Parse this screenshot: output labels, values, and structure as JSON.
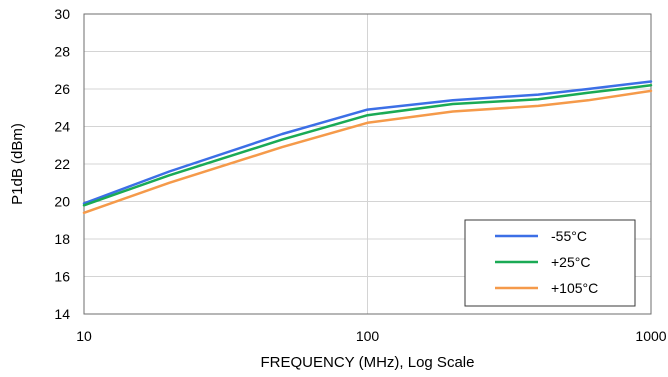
{
  "chart_data": {
    "type": "line",
    "title": "",
    "xlabel": "FREQUENCY (MHz), Log Scale",
    "ylabel": "P1dB (dBm)",
    "xscale": "log",
    "xlim": [
      10,
      1000
    ],
    "ylim": [
      14,
      30
    ],
    "xticks": [
      10,
      100,
      1000
    ],
    "xtick_labels": [
      "10",
      "100",
      "1000"
    ],
    "yticks": [
      14,
      16,
      18,
      20,
      22,
      24,
      26,
      28,
      30
    ],
    "ytick_labels": [
      "14",
      "16",
      "18",
      "20",
      "22",
      "24",
      "26",
      "28",
      "30"
    ],
    "grid": true,
    "legend_position": "bottom-right",
    "series": [
      {
        "name": "-55°C",
        "color": "#3c6fe6",
        "x": [
          10,
          20,
          50,
          100,
          200,
          400,
          600,
          1000
        ],
        "y": [
          19.9,
          21.6,
          23.6,
          24.9,
          25.4,
          25.7,
          26.0,
          26.4
        ]
      },
      {
        "name": "+25°C",
        "color": "#1aaa55",
        "x": [
          10,
          20,
          50,
          100,
          200,
          400,
          600,
          1000
        ],
        "y": [
          19.8,
          21.4,
          23.3,
          24.6,
          25.2,
          25.45,
          25.8,
          26.2
        ]
      },
      {
        "name": "+105°C",
        "color": "#f59a4a",
        "x": [
          10,
          20,
          50,
          100,
          200,
          400,
          600,
          1000
        ],
        "y": [
          19.4,
          21.0,
          22.9,
          24.2,
          24.8,
          25.1,
          25.4,
          25.9
        ]
      }
    ]
  }
}
